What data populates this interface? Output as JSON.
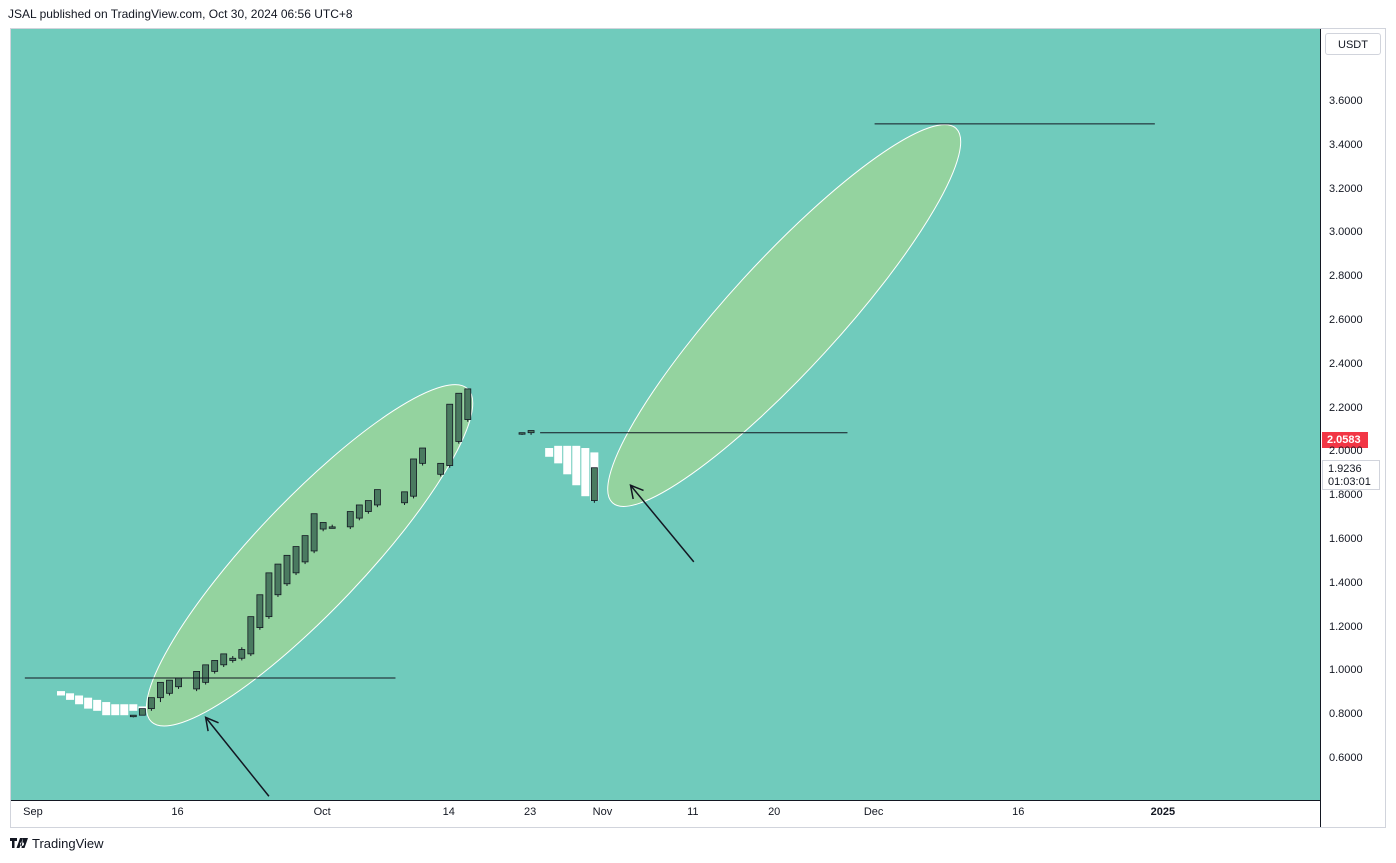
{
  "header": {
    "text": "JSAL published on TradingView.com, Oct 30, 2024 06:56 UTC+8"
  },
  "toolbar": {
    "currency": "USDT"
  },
  "price_tags": {
    "last_price": "2.0583",
    "current_price": "1.9236",
    "countdown": "01:03:01"
  },
  "footer": {
    "brand": "TradingView"
  },
  "colors": {
    "background": "#70CBBC",
    "ellipse_fill": "#9AD59A",
    "candle": "#4A7A60",
    "last_price": "#F23645"
  },
  "chart_data": {
    "type": "candlestick",
    "y_axis_ticks": [
      "0.6000",
      "0.8000",
      "1.0000",
      "1.2000",
      "1.4000",
      "1.6000",
      "1.8000",
      "2.0000",
      "2.2000",
      "2.4000",
      "2.6000",
      "2.8000",
      "3.0000",
      "3.2000",
      "3.4000",
      "3.6000"
    ],
    "x_axis_ticks": [
      {
        "label": "Sep",
        "day": -2
      },
      {
        "label": "16",
        "day": 14
      },
      {
        "label": "Oct",
        "day": 30
      },
      {
        "label": "14",
        "day": 44
      },
      {
        "label": "23",
        "day": 53
      },
      {
        "label": "Nov",
        "day": 61
      },
      {
        "label": "11",
        "day": 71
      },
      {
        "label": "20",
        "day": 80
      },
      {
        "label": "Dec",
        "day": 91
      },
      {
        "label": "16",
        "day": 107
      },
      {
        "label": "2025",
        "day": 123,
        "bold": true
      }
    ],
    "ylim": [
      0.42,
      3.9
    ],
    "candles_bullish": [
      {
        "d": 8,
        "o": 0.8,
        "h": 0.8,
        "l": 0.79,
        "c": 0.8
      },
      {
        "d": 9,
        "o": 0.8,
        "h": 0.83,
        "l": 0.8,
        "c": 0.83
      },
      {
        "d": 10,
        "o": 0.83,
        "h": 0.88,
        "l": 0.82,
        "c": 0.88
      },
      {
        "d": 11,
        "o": 0.88,
        "h": 0.95,
        "l": 0.86,
        "c": 0.95
      },
      {
        "d": 12,
        "o": 0.9,
        "h": 0.96,
        "l": 0.89,
        "c": 0.96
      },
      {
        "d": 13,
        "o": 0.93,
        "h": 0.97,
        "l": 0.92,
        "c": 0.97
      },
      {
        "d": 15,
        "o": 0.92,
        "h": 1.0,
        "l": 0.91,
        "c": 1.0
      },
      {
        "d": 16,
        "o": 0.95,
        "h": 1.03,
        "l": 0.94,
        "c": 1.03
      },
      {
        "d": 17,
        "o": 1.0,
        "h": 1.05,
        "l": 0.99,
        "c": 1.05
      },
      {
        "d": 18,
        "o": 1.03,
        "h": 1.08,
        "l": 1.02,
        "c": 1.08
      },
      {
        "d": 19,
        "o": 1.05,
        "h": 1.07,
        "l": 1.04,
        "c": 1.06
      },
      {
        "d": 20,
        "o": 1.06,
        "h": 1.11,
        "l": 1.05,
        "c": 1.1
      },
      {
        "d": 21,
        "o": 1.08,
        "h": 1.25,
        "l": 1.07,
        "c": 1.25
      },
      {
        "d": 22,
        "o": 1.2,
        "h": 1.35,
        "l": 1.19,
        "c": 1.35
      },
      {
        "d": 23,
        "o": 1.25,
        "h": 1.45,
        "l": 1.24,
        "c": 1.45
      },
      {
        "d": 24,
        "o": 1.35,
        "h": 1.49,
        "l": 1.34,
        "c": 1.49
      },
      {
        "d": 25,
        "o": 1.4,
        "h": 1.53,
        "l": 1.39,
        "c": 1.53
      },
      {
        "d": 26,
        "o": 1.45,
        "h": 1.57,
        "l": 1.44,
        "c": 1.57
      },
      {
        "d": 27,
        "o": 1.5,
        "h": 1.62,
        "l": 1.49,
        "c": 1.62
      },
      {
        "d": 28,
        "o": 1.55,
        "h": 1.72,
        "l": 1.54,
        "c": 1.72
      },
      {
        "d": 29,
        "o": 1.65,
        "h": 1.68,
        "l": 1.64,
        "c": 1.68
      },
      {
        "d": 30,
        "o": 1.66,
        "h": 1.67,
        "l": 1.66,
        "c": 1.66
      },
      {
        "d": 32,
        "o": 1.66,
        "h": 1.73,
        "l": 1.65,
        "c": 1.73
      },
      {
        "d": 33,
        "o": 1.7,
        "h": 1.76,
        "l": 1.69,
        "c": 1.76
      },
      {
        "d": 34,
        "o": 1.73,
        "h": 1.78,
        "l": 1.72,
        "c": 1.78
      },
      {
        "d": 35,
        "o": 1.76,
        "h": 1.83,
        "l": 1.75,
        "c": 1.83
      },
      {
        "d": 38,
        "o": 1.77,
        "h": 1.82,
        "l": 1.76,
        "c": 1.82
      },
      {
        "d": 39,
        "o": 1.8,
        "h": 1.97,
        "l": 1.79,
        "c": 1.97
      },
      {
        "d": 40,
        "o": 1.95,
        "h": 2.02,
        "l": 1.94,
        "c": 2.02
      },
      {
        "d": 42,
        "o": 1.9,
        "h": 1.95,
        "l": 1.89,
        "c": 1.95
      },
      {
        "d": 43,
        "o": 1.94,
        "h": 2.22,
        "l": 1.93,
        "c": 2.22
      },
      {
        "d": 44,
        "o": 2.05,
        "h": 2.27,
        "l": 2.04,
        "c": 2.27
      },
      {
        "d": 45,
        "o": 2.15,
        "h": 2.29,
        "l": 2.14,
        "c": 2.29
      },
      {
        "d": 51,
        "o": 2.09,
        "h": 2.09,
        "l": 2.08,
        "c": 2.09
      },
      {
        "d": 52,
        "o": 2.09,
        "h": 2.1,
        "l": 2.08,
        "c": 2.1
      },
      {
        "d": 59,
        "o": 1.78,
        "h": 1.93,
        "l": 1.77,
        "c": 1.93
      }
    ],
    "shadow_bars": [
      {
        "d": 0,
        "top": 0.91,
        "bottom": 0.89
      },
      {
        "d": 1,
        "top": 0.9,
        "bottom": 0.87
      },
      {
        "d": 2,
        "top": 0.89,
        "bottom": 0.85
      },
      {
        "d": 3,
        "top": 0.88,
        "bottom": 0.83
      },
      {
        "d": 4,
        "top": 0.87,
        "bottom": 0.82
      },
      {
        "d": 5,
        "top": 0.86,
        "bottom": 0.8
      },
      {
        "d": 6,
        "top": 0.85,
        "bottom": 0.8
      },
      {
        "d": 7,
        "top": 0.85,
        "bottom": 0.8
      },
      {
        "d": 8,
        "top": 0.85,
        "bottom": 0.82
      },
      {
        "d": 9,
        "top": 0.84,
        "bottom": 0.83
      },
      {
        "d": 54,
        "top": 2.02,
        "bottom": 1.98
      },
      {
        "d": 55,
        "top": 2.03,
        "bottom": 1.95
      },
      {
        "d": 56,
        "top": 2.03,
        "bottom": 1.9
      },
      {
        "d": 57,
        "top": 2.03,
        "bottom": 1.85
      },
      {
        "d": 58,
        "top": 2.02,
        "bottom": 1.8
      },
      {
        "d": 59,
        "top": 2.0,
        "bottom": 1.78
      }
    ],
    "horizontal_lines": [
      {
        "from_day": -4,
        "to_day": 37,
        "price": 0.97
      },
      {
        "from_day": 53,
        "to_day": 87,
        "price": 2.09
      },
      {
        "from_day": 90,
        "to_day": 121,
        "price": 3.5
      }
    ],
    "highlight_ellipses": [
      {
        "from_day": 10,
        "from_price": 0.77,
        "to_day": 45,
        "to_price": 2.29
      },
      {
        "from_day": 61,
        "from_price": 1.77,
        "to_day": 99,
        "to_price": 3.48
      }
    ],
    "arrows": [
      {
        "from_day": 23,
        "from_price": 0.43,
        "to_day": 16,
        "to_price": 0.79
      },
      {
        "from_day": 70,
        "from_price": 1.5,
        "to_day": 63,
        "to_price": 1.85
      }
    ]
  }
}
